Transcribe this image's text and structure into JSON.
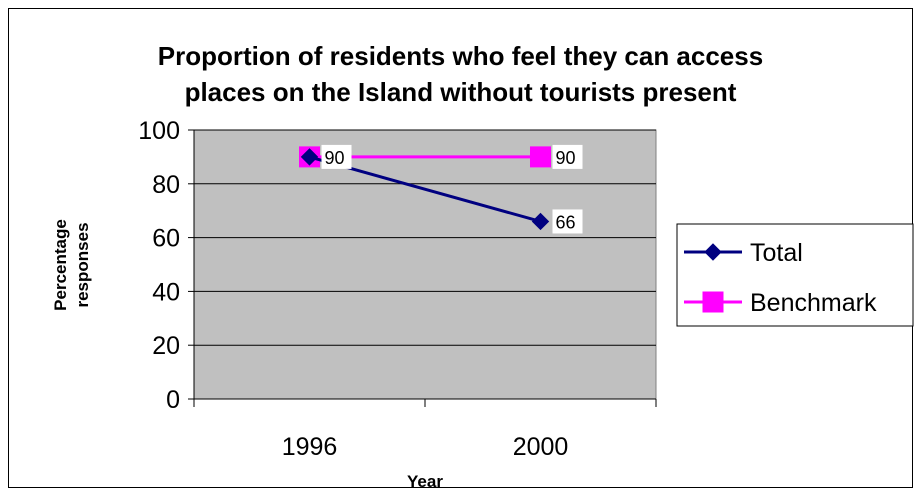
{
  "chart_data": {
    "type": "line",
    "title_lines": [
      "Proportion of residents who feel they can access",
      "places on the Island without tourists present"
    ],
    "xlabel": "Year",
    "ylabel_lines": [
      "Percentage",
      "responses"
    ],
    "categories": [
      "1996",
      "2000"
    ],
    "ylim": [
      0,
      100
    ],
    "yticks": [
      0,
      20,
      40,
      60,
      80,
      100
    ],
    "grid": true,
    "legend": "right",
    "plot_background": "#c0c0c0",
    "series": [
      {
        "name": "Total",
        "values": [
          90,
          66
        ],
        "labels": [
          "90",
          "66"
        ],
        "color": "#000080",
        "marker": "diamond"
      },
      {
        "name": "Benchmark",
        "values": [
          90,
          90
        ],
        "labels": [
          "",
          "90"
        ],
        "color": "#ff00ff",
        "marker": "square"
      }
    ]
  }
}
